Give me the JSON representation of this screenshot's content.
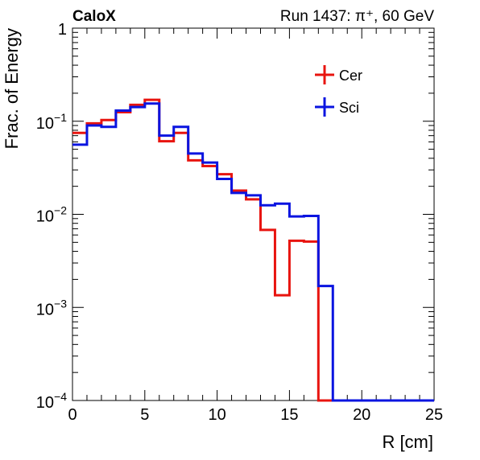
{
  "header": {
    "left_title": "CaloX",
    "right_title": "Run 1437: π⁺, 60 GeV"
  },
  "chart_data": {
    "type": "line",
    "step": true,
    "xlabel": "R [cm]",
    "ylabel": "Frac. of Energy",
    "xlim": [
      0,
      25
    ],
    "ylim": [
      0.0001,
      1
    ],
    "log_y": true,
    "x_ticks": [
      {
        "value": 0,
        "label": "0"
      },
      {
        "value": 5,
        "label": "5"
      },
      {
        "value": 10,
        "label": "10"
      },
      {
        "value": 15,
        "label": "15"
      },
      {
        "value": 20,
        "label": "20"
      },
      {
        "value": 25,
        "label": "25"
      }
    ],
    "y_ticks": [
      {
        "value": 1,
        "base": "1",
        "exp": ""
      },
      {
        "value": 0.1,
        "base": "10",
        "exp": "−1"
      },
      {
        "value": 0.01,
        "base": "10",
        "exp": "−2"
      },
      {
        "value": 0.001,
        "base": "10",
        "exp": "−3"
      },
      {
        "value": 0.0001,
        "base": "10",
        "exp": "−4"
      }
    ],
    "bin_edges": [
      0,
      1,
      2,
      3,
      4,
      5,
      6,
      7,
      8,
      9,
      10,
      11,
      12,
      13,
      14,
      15,
      16,
      17,
      18,
      19,
      20,
      21,
      22,
      23,
      24,
      25
    ],
    "series": [
      {
        "name": "Cer",
        "color": "#e8140f",
        "values": [
          0.075,
          0.095,
          0.103,
          0.125,
          0.15,
          0.17,
          0.061,
          0.075,
          0.038,
          0.033,
          0.027,
          0.018,
          0.0145,
          0.0068,
          0.00135,
          0.0052,
          0.0051,
          0.0001,
          0.0001,
          0.0001,
          0.0001,
          0.0001,
          0.0001,
          0.0001,
          0.0001
        ]
      },
      {
        "name": "Sci",
        "color": "#0a14e0",
        "values": [
          0.056,
          0.09,
          0.087,
          0.13,
          0.142,
          0.155,
          0.07,
          0.087,
          0.045,
          0.036,
          0.024,
          0.017,
          0.016,
          0.0125,
          0.013,
          0.0095,
          0.0096,
          0.0017,
          0.0001,
          0.0001,
          0.0001,
          0.0001,
          0.0001,
          0.0001,
          0.0001
        ]
      }
    ],
    "legend_position": "top-right"
  }
}
